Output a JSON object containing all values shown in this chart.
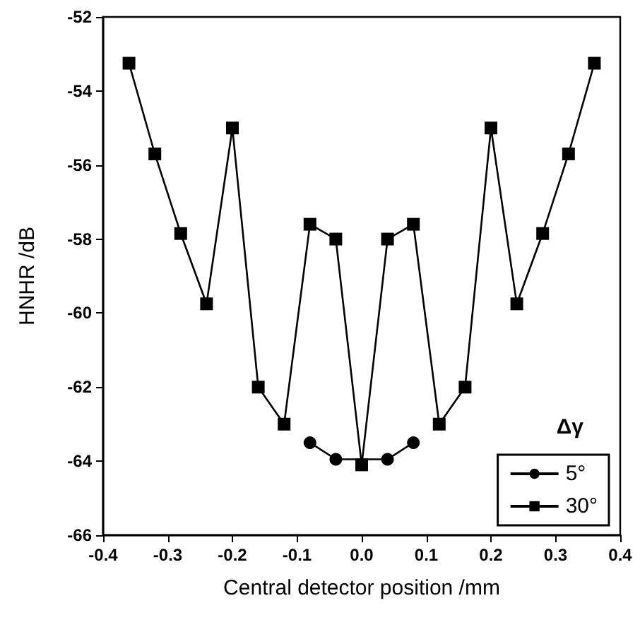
{
  "chart_data": {
    "type": "line",
    "xlabel": "Central detector position /mm",
    "ylabel": "HNHR /dB",
    "legend_title": "Δγ",
    "legend": "bottom right",
    "grid": false,
    "xlim": [
      -0.4,
      0.4
    ],
    "xticks": [
      -0.4,
      -0.3,
      -0.2,
      -0.1,
      {
        "value": 0,
        "label": "0.0"
      },
      0.1,
      0.2,
      0.3,
      0.4
    ],
    "ylim": [
      -66,
      -52
    ],
    "yticks": [
      -66,
      -64,
      -62,
      -60,
      -58,
      -56,
      -54,
      -52
    ],
    "series": [
      {
        "name": "5°",
        "color": "#000000",
        "marker": "circle",
        "x": [
          -0.08,
          -0.04,
          0,
          0.04,
          0.08
        ],
        "values": [
          -63.5,
          -63.95,
          null,
          -63.95,
          -63.5
        ]
      },
      {
        "name": "30°",
        "color": "#000000",
        "marker": "square",
        "x": [
          -0.36,
          -0.32,
          -0.28,
          -0.24,
          -0.2,
          -0.16,
          -0.12,
          -0.08,
          -0.04,
          0,
          0.04,
          0.08,
          0.12,
          0.16,
          0.2,
          0.24,
          0.28,
          0.32,
          0.36
        ],
        "values": [
          -53.25,
          -55.7,
          -57.85,
          -59.75,
          -55.0,
          -62.0,
          -63.0,
          -57.6,
          -58.0,
          -64.1,
          -58.0,
          -57.6,
          -63.0,
          -62.0,
          -55.0,
          -59.75,
          -57.85,
          -55.7,
          -53.25
        ]
      }
    ]
  }
}
